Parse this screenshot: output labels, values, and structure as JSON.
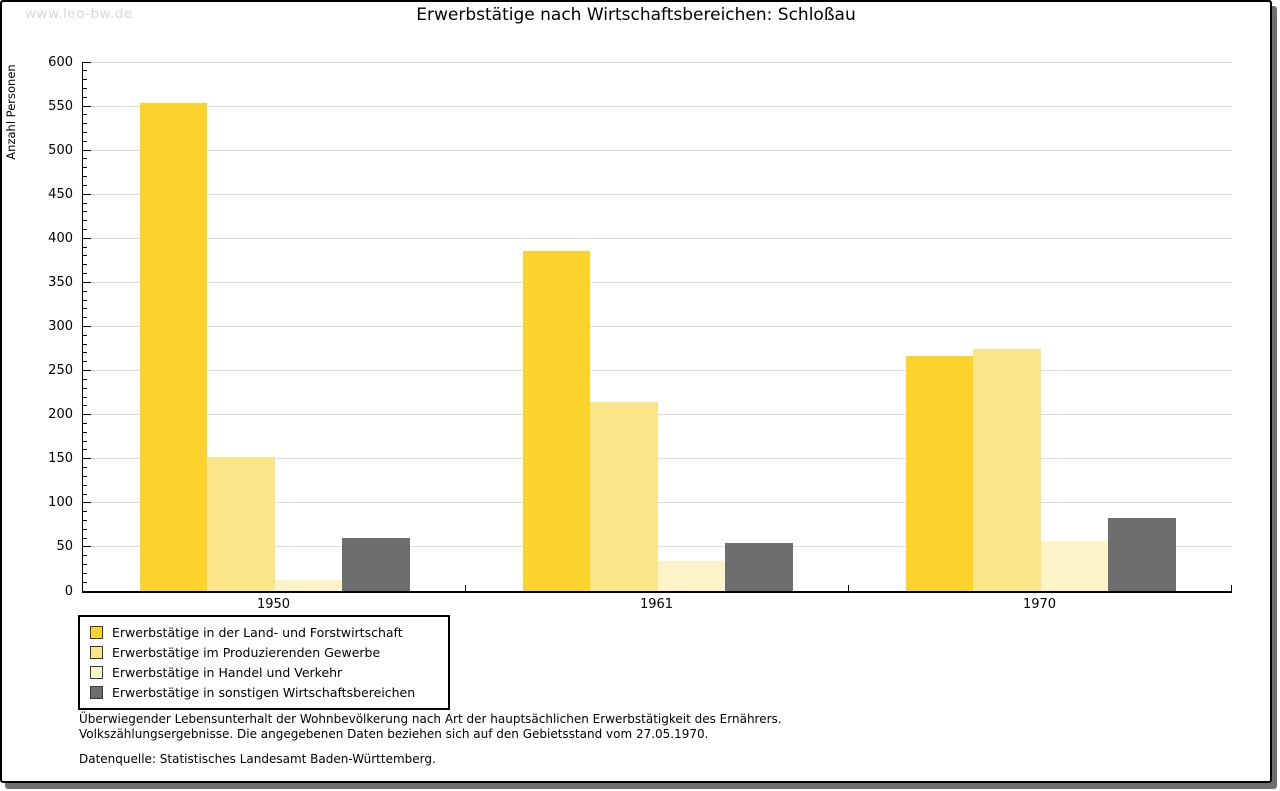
{
  "watermark": "www.leo-bw.de",
  "header": {
    "title": "Erwerbstätige nach Wirtschaftsbereichen: Schloßau"
  },
  "chart_data": {
    "type": "bar",
    "title": "Erwerbstätige nach Wirtschaftsbereichen: Schloßau",
    "xlabel": "",
    "ylabel": "Anzahl Personen",
    "categories": [
      "1950",
      "1961",
      "1970"
    ],
    "series": [
      {
        "name": "Erwerbstätige in der Land- und Forstwirtschaft",
        "color": "#fbd32b",
        "values": [
          553,
          386,
          266
        ]
      },
      {
        "name": "Erwerbstätige im Produzierenden Gewerbe",
        "color": "#fae588",
        "values": [
          152,
          214,
          274
        ]
      },
      {
        "name": "Erwerbstätige in Handel und Verkehr",
        "color": "#fcf3c9",
        "values": [
          13,
          34,
          57
        ]
      },
      {
        "name": "Erwerbstätige in sonstigen Wirtschaftsbereichen",
        "color": "#6e6e6e",
        "values": [
          60,
          54,
          83
        ]
      }
    ],
    "ylim": [
      0,
      600
    ],
    "ytick_step": 50,
    "y_minor_step": 10,
    "grid": true,
    "gridline_color": "#dcdcdc",
    "legend_position": "bottom-left"
  },
  "footnotes": {
    "line1": "Überwiegender Lebensunterhalt der Wohnbevölkerung nach Art der hauptsächlichen Erwerbstätigkeit des Ernährers.",
    "line2": "Volkszählungsergebnisse. Die angegebenen Daten beziehen sich auf den Gebietsstand vom 27.05.1970.",
    "source": "Datenquelle: Statistisches Landesamt Baden-Württemberg."
  },
  "colors": {
    "frame_border": "#000000",
    "frame_shadow": "#6f6f6f",
    "watermark": "#d8d8d8",
    "gridline": "#dcdcdc"
  }
}
